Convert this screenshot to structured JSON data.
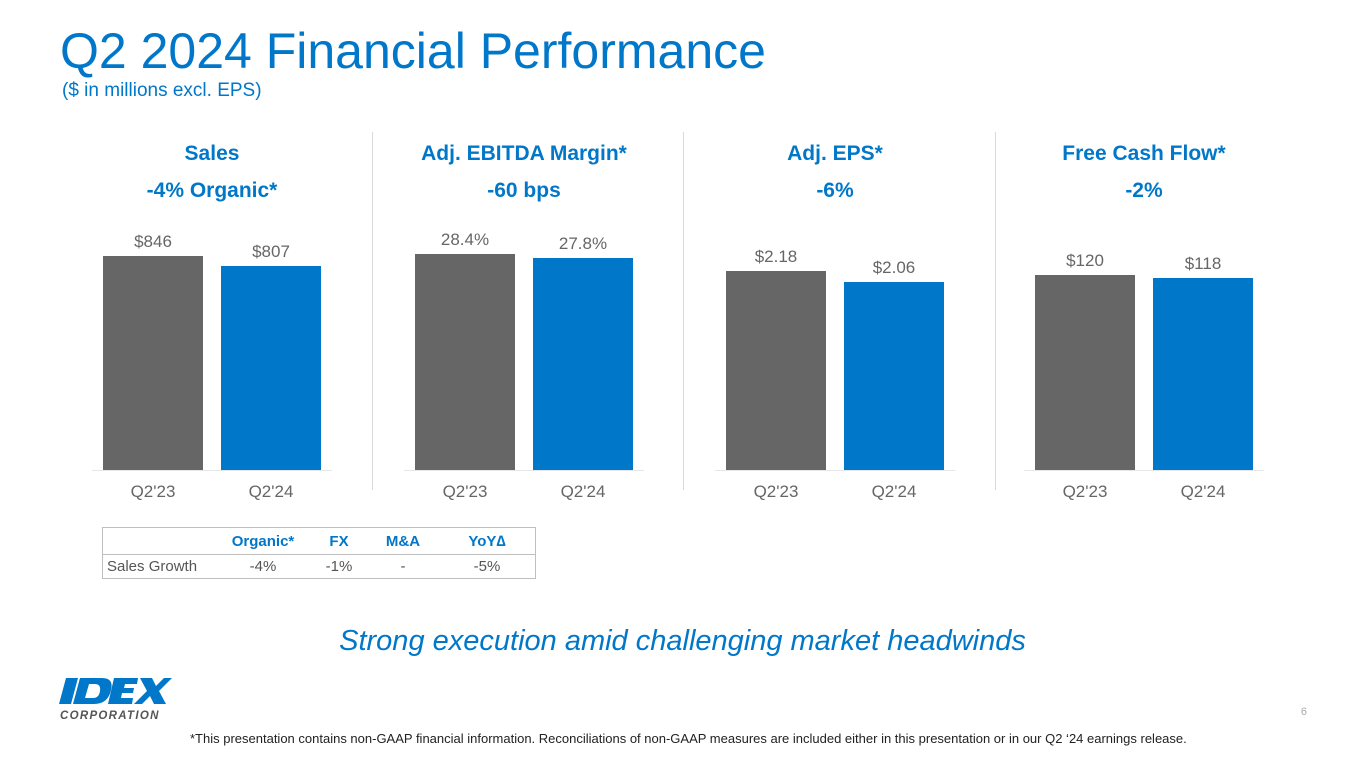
{
  "header": {
    "title": "Q2 2024 Financial Performance",
    "subtitle": "($ in millions excl. EPS)"
  },
  "colors": {
    "accent": "#0077C8",
    "prior": "#666666",
    "current": "#0077C8"
  },
  "chart_data": [
    {
      "type": "bar",
      "title": "Sales",
      "subtitle": "-4% Organic*",
      "categories": [
        "Q2'23",
        "Q2'24"
      ],
      "values": [
        846,
        807
      ],
      "labels": [
        "$846",
        "$807"
      ],
      "ylim": [
        0,
        910
      ]
    },
    {
      "type": "bar",
      "title": "Adj. EBITDA Margin*",
      "subtitle": "-60 bps",
      "categories": [
        "Q2'23",
        "Q2'24"
      ],
      "values": [
        28.4,
        27.8
      ],
      "labels": [
        "28.4%",
        "27.8%"
      ],
      "ylim": [
        0,
        30.2
      ]
    },
    {
      "type": "bar",
      "title": "Adj. EPS*",
      "subtitle": "-6%",
      "categories": [
        "Q2'23",
        "Q2'24"
      ],
      "values": [
        2.18,
        2.06
      ],
      "labels": [
        "$2.18",
        "$2.06"
      ],
      "ylim": [
        0,
        2.52
      ]
    },
    {
      "type": "bar",
      "title": "Free Cash Flow*",
      "subtitle": "-2%",
      "categories": [
        "Q2'23",
        "Q2'24"
      ],
      "values": [
        120,
        118
      ],
      "labels": [
        "$120",
        "$118"
      ],
      "ylim": [
        0,
        141.5
      ]
    }
  ],
  "table": {
    "headers": [
      "",
      "Organic*",
      "FX",
      "M&A",
      "YoY∆"
    ],
    "rows": [
      [
        "Sales Growth",
        "-4%",
        "-1%",
        "-",
        "-5%"
      ]
    ]
  },
  "tagline": "Strong execution amid challenging market headwinds",
  "logo": {
    "name": "IDEX",
    "sub": "CORPORATION"
  },
  "page_number": "6",
  "footnote": "*This presentation contains non-GAAP financial information. Reconciliations of non-GAAP measures are included either in this presentation or in our Q2 ‘24 earnings release."
}
